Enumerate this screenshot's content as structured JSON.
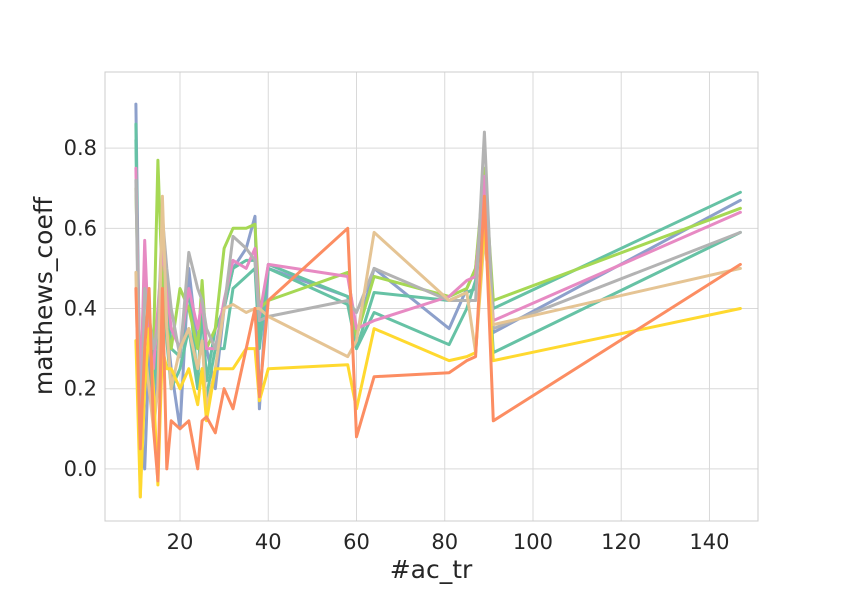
{
  "chart_data": {
    "type": "line",
    "title": "",
    "xlabel": "#ac_tr",
    "ylabel": "matthews_coeff",
    "xlim": [
      3,
      151
    ],
    "ylim": [
      -0.13,
      0.99
    ],
    "xticks": [
      20,
      40,
      60,
      80,
      100,
      120,
      140
    ],
    "yticks": [
      0.0,
      0.2,
      0.4,
      0.6,
      0.8
    ],
    "xtick_labels": [
      "20",
      "40",
      "60",
      "80",
      "100",
      "120",
      "140"
    ],
    "ytick_labels": [
      "0.0",
      "0.2",
      "0.4",
      "0.6",
      "0.8"
    ],
    "grid": true,
    "legend": "none",
    "series": [
      {
        "color": "#8da0cb",
        "x": [
          10,
          11,
          12,
          13,
          14,
          15,
          16,
          17,
          18,
          20,
          22,
          24,
          25,
          26,
          28,
          30,
          32,
          35,
          37,
          38,
          40,
          58,
          60,
          64,
          81,
          85,
          87,
          89,
          91,
          147
        ],
        "y": [
          0.91,
          0.1,
          0.0,
          0.3,
          0.1,
          0.25,
          0.6,
          0.35,
          0.25,
          0.1,
          0.5,
          0.3,
          0.45,
          0.3,
          0.2,
          0.4,
          0.5,
          0.55,
          0.63,
          0.15,
          0.5,
          0.43,
          0.33,
          0.5,
          0.35,
          0.45,
          0.5,
          0.72,
          0.34,
          0.67
        ]
      },
      {
        "color": "#66c2a5",
        "x": [
          10,
          11,
          12,
          13,
          14,
          15,
          16,
          17,
          18,
          20,
          22,
          24,
          25,
          26,
          28,
          30,
          32,
          35,
          37,
          38,
          40,
          58,
          60,
          64,
          81,
          85,
          87,
          89,
          91,
          147
        ],
        "y": [
          0.86,
          -0.03,
          0.44,
          0.4,
          0.2,
          0.3,
          0.57,
          0.45,
          0.3,
          0.28,
          0.45,
          0.22,
          0.4,
          0.22,
          0.35,
          0.4,
          0.5,
          0.52,
          0.52,
          0.35,
          0.51,
          0.43,
          0.3,
          0.44,
          0.42,
          0.44,
          0.45,
          0.7,
          0.4,
          0.69
        ]
      },
      {
        "color": "#66c2a5",
        "x": [
          10,
          11,
          12,
          13,
          14,
          15,
          16,
          17,
          18,
          20,
          22,
          24,
          25,
          26,
          28,
          30,
          32,
          35,
          37,
          38,
          40,
          58,
          60,
          64,
          81,
          85,
          87,
          89,
          91,
          147
        ],
        "y": [
          0.82,
          0.1,
          0.3,
          0.2,
          0.3,
          0.28,
          0.5,
          0.32,
          0.2,
          0.25,
          0.35,
          0.2,
          0.25,
          0.18,
          0.3,
          0.3,
          0.45,
          0.48,
          0.5,
          0.3,
          0.5,
          0.41,
          0.3,
          0.39,
          0.31,
          0.4,
          0.47,
          0.68,
          0.29,
          0.59
        ]
      },
      {
        "color": "#a6d854",
        "x": [
          10,
          11,
          12,
          13,
          14,
          15,
          16,
          17,
          18,
          20,
          22,
          24,
          25,
          26,
          28,
          30,
          32,
          35,
          37,
          38,
          40,
          58,
          60,
          64,
          81,
          85,
          87,
          89,
          91,
          147
        ],
        "y": [
          0.7,
          0.2,
          0.5,
          0.35,
          0.3,
          0.77,
          0.45,
          0.35,
          0.3,
          0.45,
          0.4,
          0.3,
          0.47,
          0.3,
          0.35,
          0.55,
          0.6,
          0.6,
          0.61,
          0.4,
          0.42,
          0.49,
          0.33,
          0.48,
          0.43,
          0.45,
          0.5,
          0.75,
          0.42,
          0.65
        ]
      },
      {
        "color": "#e78ac3",
        "x": [
          10,
          11,
          12,
          13,
          14,
          15,
          16,
          17,
          18,
          20,
          22,
          24,
          25,
          26,
          28,
          30,
          32,
          35,
          37,
          38,
          40,
          58,
          60,
          64,
          81,
          85,
          87,
          89,
          91,
          147
        ],
        "y": [
          0.75,
          0.15,
          0.57,
          0.3,
          0.25,
          0.4,
          0.55,
          0.45,
          0.35,
          0.3,
          0.45,
          0.35,
          0.42,
          0.3,
          0.3,
          0.42,
          0.52,
          0.5,
          0.55,
          0.38,
          0.51,
          0.48,
          0.35,
          0.37,
          0.43,
          0.47,
          0.48,
          0.73,
          0.37,
          0.64
        ]
      },
      {
        "color": "#b3b3b3",
        "x": [
          10,
          11,
          12,
          13,
          14,
          15,
          16,
          17,
          18,
          20,
          22,
          24,
          25,
          26,
          28,
          30,
          32,
          35,
          37,
          38,
          40,
          58,
          60,
          64,
          81,
          85,
          87,
          89,
          91,
          147
        ],
        "y": [
          0.72,
          0.05,
          0.45,
          0.38,
          0.3,
          0.35,
          0.63,
          0.5,
          0.4,
          0.28,
          0.54,
          0.45,
          0.42,
          0.35,
          0.3,
          0.4,
          0.58,
          0.55,
          0.52,
          0.37,
          0.38,
          0.42,
          0.39,
          0.5,
          0.42,
          0.42,
          0.42,
          0.84,
          0.35,
          0.59
        ]
      },
      {
        "color": "#e5c494",
        "x": [
          10,
          11,
          12,
          13,
          14,
          15,
          16,
          17,
          18,
          20,
          22,
          24,
          25,
          26,
          28,
          30,
          32,
          35,
          37,
          38,
          40,
          58,
          60,
          64,
          81,
          85,
          87,
          89,
          91,
          147
        ],
        "y": [
          0.49,
          -0.07,
          0.3,
          0.2,
          0.1,
          0.2,
          0.68,
          0.35,
          0.2,
          0.3,
          0.35,
          0.25,
          0.32,
          0.15,
          0.25,
          0.4,
          0.41,
          0.39,
          0.4,
          0.4,
          0.38,
          0.28,
          0.32,
          0.59,
          0.42,
          0.44,
          0.29,
          0.58,
          0.36,
          0.5
        ]
      },
      {
        "color": "#ffd92f",
        "x": [
          10,
          11,
          12,
          13,
          14,
          15,
          16,
          17,
          18,
          20,
          22,
          24,
          25,
          26,
          28,
          30,
          32,
          35,
          37,
          38,
          40,
          58,
          60,
          64,
          81,
          85,
          87,
          89,
          91,
          147
        ],
        "y": [
          0.32,
          -0.07,
          0.2,
          0.35,
          0.2,
          -0.04,
          0.3,
          0.25,
          0.25,
          0.2,
          0.25,
          0.16,
          0.25,
          0.12,
          0.25,
          0.25,
          0.25,
          0.3,
          0.3,
          0.17,
          0.25,
          0.26,
          0.15,
          0.35,
          0.27,
          0.28,
          0.29,
          0.62,
          0.27,
          0.4
        ]
      },
      {
        "color": "#fc8d62",
        "x": [
          10,
          11,
          12,
          13,
          14,
          15,
          16,
          17,
          18,
          20,
          22,
          24,
          25,
          26,
          28,
          30,
          32,
          35,
          37,
          38,
          40,
          58,
          60,
          64,
          81,
          85,
          87,
          89,
          91,
          147
        ],
        "y": [
          0.45,
          0.05,
          0.3,
          0.45,
          0.1,
          -0.03,
          0.45,
          0.0,
          0.12,
          0.1,
          0.12,
          0.0,
          0.12,
          0.13,
          0.09,
          0.2,
          0.15,
          0.3,
          0.4,
          0.18,
          0.42,
          0.6,
          0.08,
          0.23,
          0.24,
          0.27,
          0.28,
          0.68,
          0.12,
          0.51
        ]
      }
    ]
  }
}
